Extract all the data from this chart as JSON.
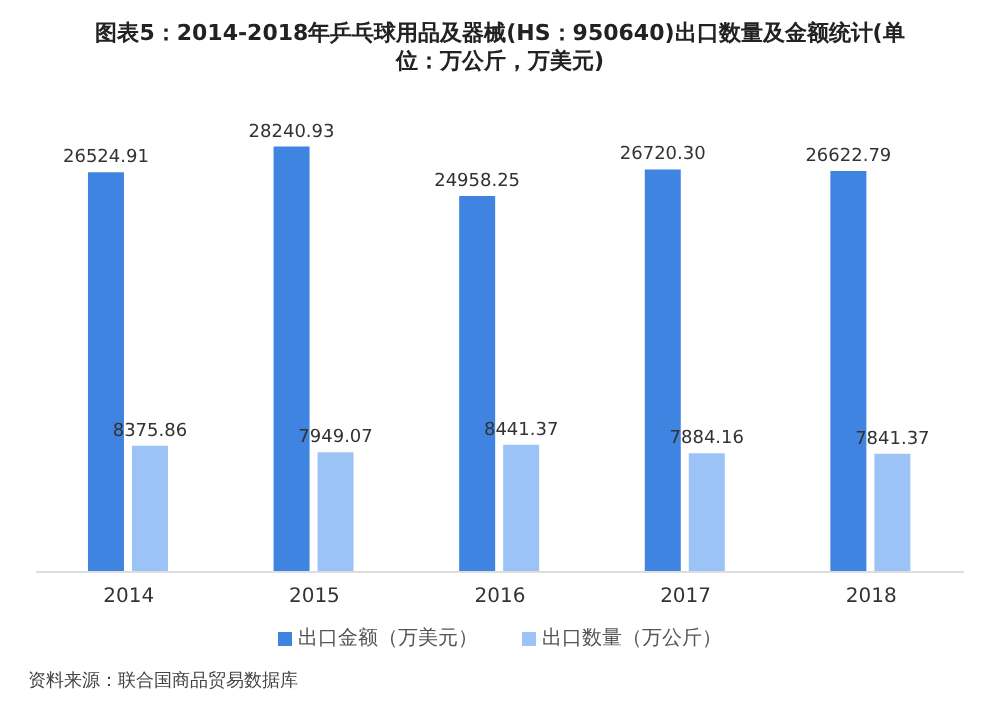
{
  "chart_data": {
    "type": "bar",
    "title": "图表5：2014-2018年乒乓球用品及器械(HS：950640)出口数量及金额统计(单位：万公斤，万美元)",
    "categories": [
      "2014",
      "2015",
      "2016",
      "2017",
      "2018"
    ],
    "series": [
      {
        "name": "出口金额（万美元）",
        "color": "#3f84e0",
        "values": [
          26524.91,
          28240.93,
          24958.25,
          26720.3,
          26622.79
        ],
        "value_labels": [
          "26524.91",
          "28240.93",
          "24958.25",
          "26720.30",
          "26622.79"
        ]
      },
      {
        "name": "出口数量（万公斤）",
        "color": "#9cc3f5",
        "values": [
          8375.86,
          7949.07,
          8441.37,
          7884.16,
          7841.37
        ],
        "value_labels": [
          "8375.86",
          "7949.07",
          "8441.37",
          "7884.16",
          "7841.37"
        ]
      }
    ],
    "legend": "bottom",
    "annotations": [
      "资料来源：联合国商品贸易数据库"
    ]
  }
}
